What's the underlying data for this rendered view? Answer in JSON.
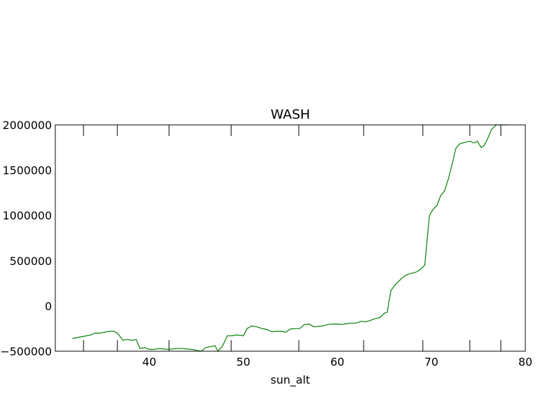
{
  "chart_data": {
    "type": "line",
    "title": "WASH",
    "xlabel": "sun_alt",
    "ylabel": "",
    "xlim": [
      30,
      80
    ],
    "ylim": [
      -500000,
      2000000
    ],
    "xticks": [
      40,
      50,
      60,
      70,
      80
    ],
    "yticks": [
      -500000,
      0,
      500000,
      1000000,
      1500000,
      2000000
    ],
    "xtick_labels": [
      "40",
      "50",
      "60",
      "70",
      "80"
    ],
    "ytick_labels": [
      "−500000",
      "0",
      "500000",
      "1000000",
      "1500000",
      "2000000"
    ],
    "top_ticks": [
      33,
      36.6,
      42.1,
      48.7,
      55.9,
      62.8,
      69.1,
      74.1,
      77.4
    ],
    "bottom_ticks": [
      33,
      36.6,
      42.1,
      48.7,
      55.9,
      62.8,
      69.1,
      74.1,
      77.4
    ],
    "grid": false,
    "series": [
      {
        "color": "#008000",
        "x": [
          31.8,
          32.8,
          33.8,
          34.2,
          34.8,
          35.2,
          35.8,
          36.2,
          36.6,
          37.2,
          37.6,
          38.2,
          38.6,
          39.0,
          39.5,
          40.0,
          40.5,
          41.0,
          41.5,
          42.0,
          42.5,
          43.0,
          43.5,
          44.0,
          44.5,
          45.0,
          45.5,
          46.0,
          46.5,
          47.0,
          47.3,
          47.8,
          48.3,
          48.8,
          49.3,
          50.0,
          50.4,
          50.9,
          51.4,
          52.0,
          52.5,
          53.0,
          53.5,
          54.0,
          54.5,
          55.0,
          55.5,
          56.0,
          56.5,
          57.0,
          57.5,
          58.0,
          58.5,
          59.0,
          59.5,
          60.0,
          60.5,
          61.0,
          61.5,
          62.0,
          62.5,
          63.0,
          63.5,
          64.0,
          64.5,
          65.0,
          65.3,
          65.7,
          66.2,
          66.8,
          67.3,
          67.8,
          68.3,
          68.8,
          69.3,
          69.8,
          70.2,
          70.6,
          71.0,
          71.4,
          71.8,
          72.2,
          72.6,
          73.0,
          73.3,
          73.7,
          74.1,
          74.5,
          74.9,
          75.3,
          75.6,
          76.0,
          76.4,
          76.9,
          77.3,
          77.7,
          78.2
        ],
        "y": [
          -360000,
          -340000,
          -320000,
          -300000,
          -300000,
          -290000,
          -280000,
          -280000,
          -300000,
          -380000,
          -370000,
          -380000,
          -370000,
          -470000,
          -460000,
          -480000,
          -480000,
          -470000,
          -475000,
          -480000,
          -475000,
          -470000,
          -470000,
          -475000,
          -480000,
          -490000,
          -500000,
          -460000,
          -450000,
          -440000,
          -500000,
          -440000,
          -330000,
          -330000,
          -320000,
          -330000,
          -250000,
          -220000,
          -230000,
          -250000,
          -260000,
          -285000,
          -280000,
          -280000,
          -290000,
          -255000,
          -250000,
          -250000,
          -205000,
          -200000,
          -230000,
          -225000,
          -220000,
          -205000,
          -200000,
          -200000,
          -205000,
          -195000,
          -190000,
          -190000,
          -170000,
          -175000,
          -160000,
          -140000,
          -130000,
          -80000,
          -70000,
          170000,
          240000,
          300000,
          340000,
          360000,
          370000,
          400000,
          450000,
          1000000,
          1070000,
          1110000,
          1220000,
          1270000,
          1400000,
          1560000,
          1740000,
          1790000,
          1800000,
          1810000,
          1820000,
          1800000,
          1820000,
          1750000,
          1770000,
          1850000,
          1950000,
          2000000,
          2000000,
          2000000,
          2000000
        ]
      }
    ]
  }
}
